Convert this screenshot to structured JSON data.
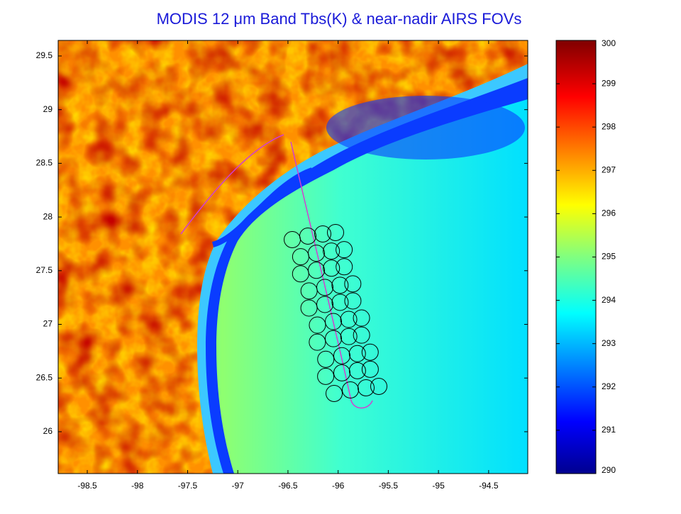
{
  "chart_data": {
    "type": "map",
    "title": "MODIS 12 μm Band Tbs(K) & near-nadir AIRS FOVs",
    "xlim": [
      -98.79,
      -94.11
    ],
    "xticks": [
      -98.5,
      -98,
      -97.5,
      -97,
      -96.5,
      -96,
      -95.5,
      -95,
      -94.5
    ],
    "ylim": [
      25.61,
      29.645
    ],
    "yticks": [
      26,
      26.5,
      27,
      27.5,
      28,
      28.5,
      29,
      29.5
    ],
    "colorbar": {
      "lim": [
        290,
        300
      ],
      "ticks": [
        290,
        291,
        292,
        293,
        294,
        295,
        296,
        297,
        298,
        299,
        300
      ],
      "colormap": "jet"
    }
  }
}
